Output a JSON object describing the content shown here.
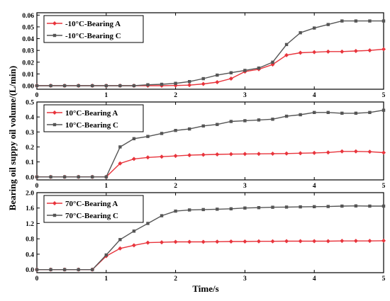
{
  "figure": {
    "ylabel": "Bearing  oil suppy oil volume/(L/min)",
    "xlabel": "Time/s"
  },
  "colors": {
    "series_a": "#e8343c",
    "series_c": "#555555",
    "frame": "#000000"
  },
  "chart_data": [
    {
      "type": "line",
      "xlim": [
        0,
        5
      ],
      "ylim": [
        -0.003,
        0.062
      ],
      "xticks": [
        "0",
        "1",
        "2",
        "3",
        "4",
        "5"
      ],
      "yticks": [
        "0.00",
        "0.01",
        "0.02",
        "0.03",
        "0.04",
        "0.05",
        "0.06"
      ],
      "legend_position": "top-left",
      "series": [
        {
          "name": "-10°C-Bearing A",
          "x": [
            0,
            0.2,
            0.4,
            0.6,
            0.8,
            1.0,
            1.2,
            1.4,
            1.6,
            1.8,
            2.0,
            2.2,
            2.4,
            2.6,
            2.8,
            3.0,
            3.2,
            3.4,
            3.6,
            3.8,
            4.0,
            4.2,
            4.4,
            4.6,
            4.8,
            5.0
          ],
          "values": [
            0,
            0,
            0,
            0,
            0,
            0,
            0,
            0,
            0,
            0,
            0.0002,
            0.0005,
            0.0015,
            0.003,
            0.006,
            0.012,
            0.014,
            0.018,
            0.026,
            0.028,
            0.0285,
            0.029,
            0.029,
            0.0295,
            0.03,
            0.031
          ]
        },
        {
          "name": "-10°C-Bearing C",
          "x": [
            0,
            0.2,
            0.4,
            0.6,
            0.8,
            1.0,
            1.2,
            1.4,
            1.6,
            1.8,
            2.0,
            2.2,
            2.4,
            2.6,
            2.8,
            3.0,
            3.2,
            3.4,
            3.6,
            3.8,
            4.0,
            4.2,
            4.4,
            4.6,
            4.8,
            5.0
          ],
          "values": [
            0,
            0,
            0,
            0,
            0,
            0,
            0,
            0,
            0.0008,
            0.0012,
            0.002,
            0.0035,
            0.006,
            0.009,
            0.011,
            0.013,
            0.015,
            0.02,
            0.035,
            0.045,
            0.049,
            0.052,
            0.055,
            0.055,
            0.055,
            0.055
          ]
        }
      ]
    },
    {
      "type": "line",
      "xlim": [
        0,
        5
      ],
      "ylim": [
        -0.02,
        0.5
      ],
      "xticks": [
        "0",
        "1",
        "2",
        "3",
        "4",
        "5"
      ],
      "yticks": [
        "0.0",
        "0.1",
        "0.2",
        "0.3",
        "0.4",
        "0.5"
      ],
      "legend_position": "top-left",
      "series": [
        {
          "name": "10°C-Bearing A",
          "x": [
            0,
            0.2,
            0.4,
            0.6,
            0.8,
            1.0,
            1.2,
            1.4,
            1.6,
            1.8,
            2.0,
            2.2,
            2.4,
            2.6,
            2.8,
            3.0,
            3.2,
            3.4,
            3.6,
            3.8,
            4.0,
            4.2,
            4.4,
            4.6,
            4.8,
            5.0
          ],
          "values": [
            0,
            0,
            0,
            0,
            0,
            0,
            0.09,
            0.12,
            0.13,
            0.135,
            0.14,
            0.145,
            0.148,
            0.15,
            0.152,
            0.153,
            0.154,
            0.155,
            0.156,
            0.158,
            0.16,
            0.163,
            0.17,
            0.17,
            0.168,
            0.162
          ]
        },
        {
          "name": "10°C-Bearing C",
          "x": [
            0,
            0.2,
            0.4,
            0.6,
            0.8,
            1.0,
            1.2,
            1.4,
            1.6,
            1.8,
            2.0,
            2.2,
            2.4,
            2.6,
            2.8,
            3.0,
            3.2,
            3.4,
            3.6,
            3.8,
            4.0,
            4.2,
            4.4,
            4.6,
            4.8,
            5.0
          ],
          "values": [
            0,
            0,
            0,
            0,
            0,
            0,
            0.2,
            0.255,
            0.27,
            0.29,
            0.31,
            0.32,
            0.34,
            0.35,
            0.37,
            0.375,
            0.38,
            0.385,
            0.405,
            0.415,
            0.43,
            0.43,
            0.425,
            0.425,
            0.43,
            0.445
          ]
        }
      ]
    },
    {
      "type": "line",
      "xlim": [
        0,
        5
      ],
      "ylim": [
        -0.08,
        2.0
      ],
      "xticks": [
        "0",
        "1",
        "2",
        "3",
        "4",
        "5"
      ],
      "yticks": [
        "0.0",
        "0.4",
        "0.8",
        "1.2",
        "1.6",
        "2.0"
      ],
      "legend_position": "top-left",
      "series": [
        {
          "name": "70°C-Bearing A",
          "x": [
            0,
            0.2,
            0.4,
            0.6,
            0.8,
            1.0,
            1.2,
            1.4,
            1.6,
            1.8,
            2.0,
            2.2,
            2.4,
            2.6,
            2.8,
            3.0,
            3.2,
            3.4,
            3.6,
            3.8,
            4.0,
            4.2,
            4.4,
            4.6,
            4.8,
            5.0
          ],
          "values": [
            0,
            0,
            0,
            0,
            0,
            0.35,
            0.55,
            0.63,
            0.7,
            0.71,
            0.72,
            0.72,
            0.72,
            0.725,
            0.73,
            0.73,
            0.735,
            0.735,
            0.74,
            0.74,
            0.74,
            0.74,
            0.745,
            0.745,
            0.745,
            0.75
          ]
        },
        {
          "name": "70°C-Bearing C",
          "x": [
            0,
            0.2,
            0.4,
            0.6,
            0.8,
            1.0,
            1.2,
            1.4,
            1.6,
            1.8,
            2.0,
            2.2,
            2.4,
            2.6,
            2.8,
            3.0,
            3.2,
            3.4,
            3.6,
            3.8,
            4.0,
            4.2,
            4.4,
            4.6,
            4.8,
            5.0
          ],
          "values": [
            0,
            0,
            0,
            0,
            0,
            0.38,
            0.78,
            1.0,
            1.2,
            1.4,
            1.52,
            1.55,
            1.56,
            1.57,
            1.58,
            1.6,
            1.61,
            1.62,
            1.625,
            1.63,
            1.635,
            1.64,
            1.65,
            1.655,
            1.65,
            1.65
          ]
        }
      ]
    }
  ]
}
